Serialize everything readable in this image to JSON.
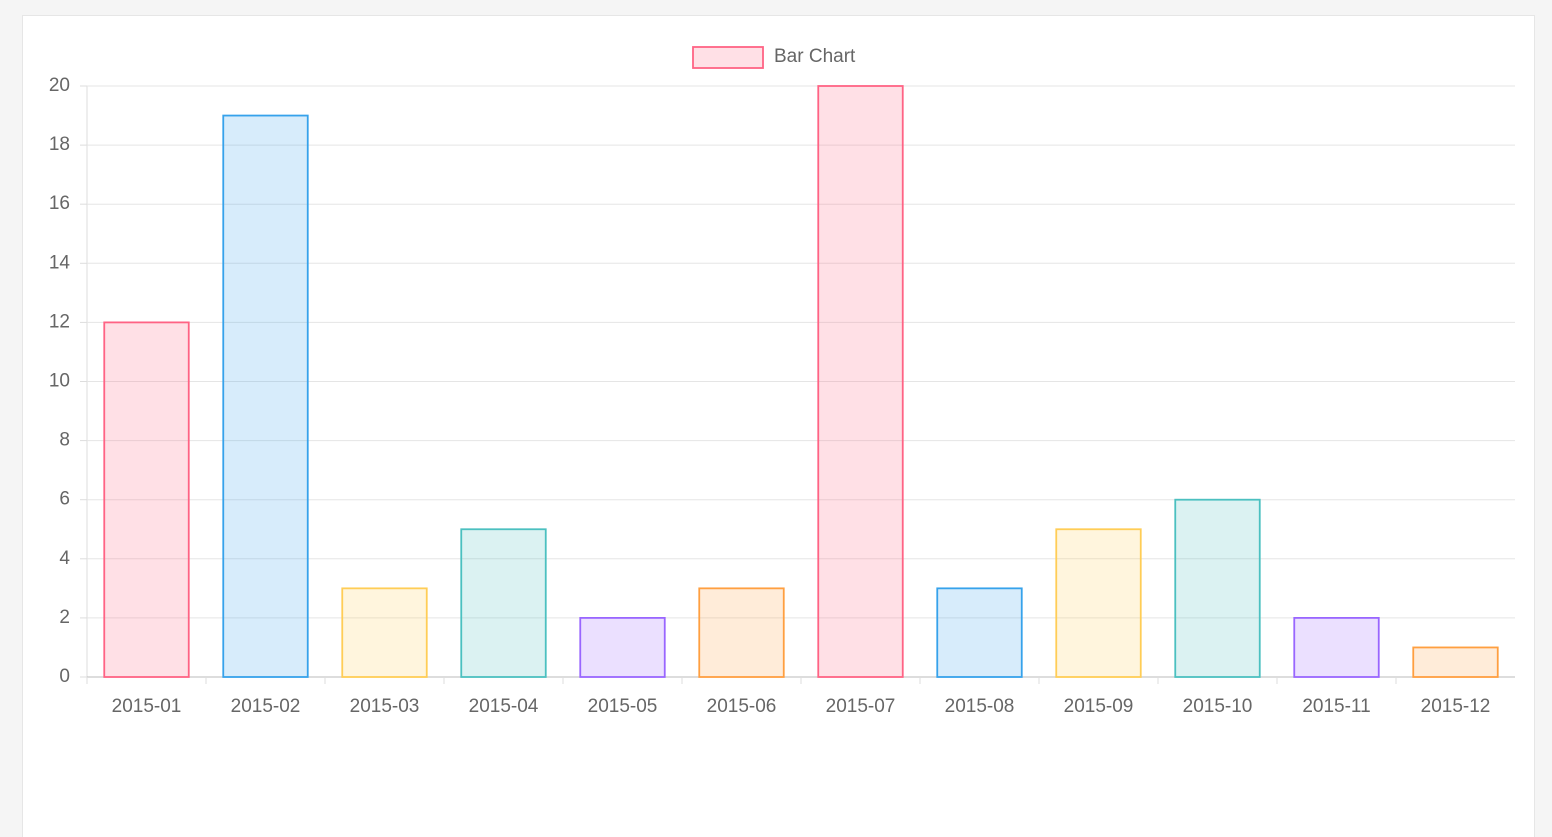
{
  "chart_data": {
    "type": "bar",
    "categories": [
      "2015-01",
      "2015-02",
      "2015-03",
      "2015-04",
      "2015-05",
      "2015-06",
      "2015-07",
      "2015-08",
      "2015-09",
      "2015-10",
      "2015-11",
      "2015-12"
    ],
    "series": [
      {
        "name": "Bar Chart",
        "colors": [
          "#ff6384",
          "#36a2eb",
          "#ffcd56",
          "#4bc0c0",
          "#9966ff",
          "#ff9f40",
          "#ff6384",
          "#36a2eb",
          "#ffcd56",
          "#4bc0c0",
          "#9966ff",
          "#ff9f40"
        ],
        "values": [
          12,
          19,
          3,
          5,
          2,
          3,
          20,
          3,
          5,
          6,
          2,
          1
        ]
      }
    ],
    "ylim": [
      0,
      20
    ],
    "yticks": [
      0,
      2,
      4,
      6,
      8,
      10,
      12,
      14,
      16,
      18,
      20
    ],
    "grid": true,
    "legend": "top"
  }
}
